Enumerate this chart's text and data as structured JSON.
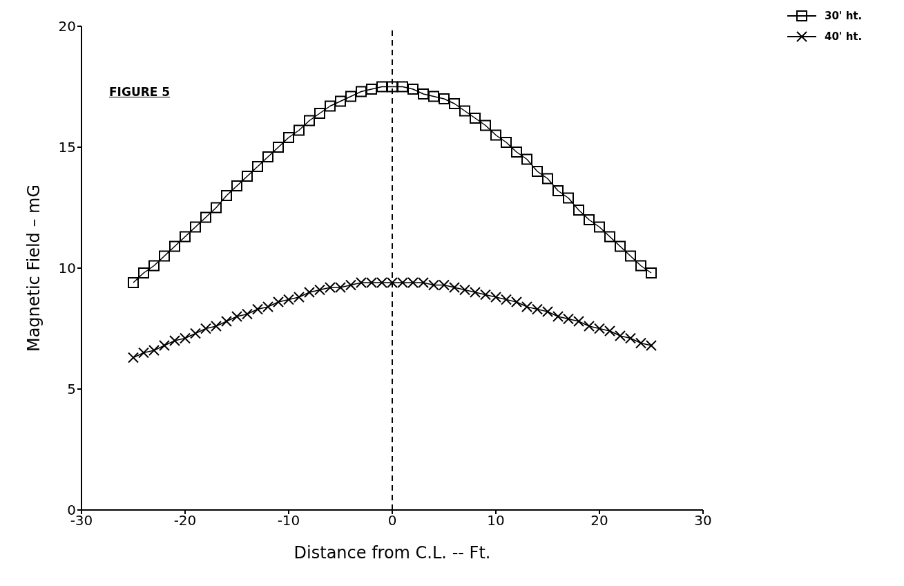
{
  "chart_data": {
    "type": "line",
    "xlabel": "Distance from C.L. -- Ft.",
    "ylabel": "Magnetic Field  –  mG",
    "annotations": [
      "FIGURE 5"
    ],
    "x": [
      -25,
      -24,
      -23,
      -22,
      -21,
      -20,
      -19,
      -18,
      -17,
      -16,
      -15,
      -14,
      -13,
      -12,
      -11,
      -10,
      -9,
      -8,
      -7,
      -6,
      -5,
      -4,
      -3,
      -2,
      -1,
      0,
      1,
      2,
      3,
      4,
      5,
      6,
      7,
      8,
      9,
      10,
      11,
      12,
      13,
      14,
      15,
      16,
      17,
      18,
      19,
      20,
      21,
      22,
      23,
      24,
      25
    ],
    "series": [
      {
        "name": "30' ht.",
        "color": "#000000",
        "marker": "square",
        "values": [
          9.4,
          9.8,
          10.1,
          10.5,
          10.9,
          11.3,
          11.7,
          12.1,
          12.5,
          13.0,
          13.4,
          13.8,
          14.2,
          14.6,
          15.0,
          15.4,
          15.7,
          16.1,
          16.4,
          16.7,
          16.9,
          17.1,
          17.3,
          17.4,
          17.5,
          17.5,
          17.5,
          17.4,
          17.2,
          17.1,
          17.0,
          16.8,
          16.5,
          16.2,
          15.9,
          15.5,
          15.2,
          14.8,
          14.5,
          14.0,
          13.7,
          13.2,
          12.9,
          12.4,
          12.0,
          11.7,
          11.3,
          10.9,
          10.5,
          10.1,
          9.8
        ]
      },
      {
        "name": "40' ht.",
        "color": "#000000",
        "marker": "cross",
        "values": [
          6.3,
          6.5,
          6.6,
          6.8,
          7.0,
          7.1,
          7.3,
          7.5,
          7.6,
          7.8,
          8.0,
          8.1,
          8.3,
          8.4,
          8.6,
          8.7,
          8.8,
          9.0,
          9.1,
          9.2,
          9.2,
          9.3,
          9.4,
          9.4,
          9.4,
          9.4,
          9.4,
          9.4,
          9.4,
          9.3,
          9.3,
          9.2,
          9.1,
          9.0,
          8.9,
          8.8,
          8.7,
          8.6,
          8.4,
          8.3,
          8.2,
          8.0,
          7.9,
          7.8,
          7.6,
          7.5,
          7.4,
          7.2,
          7.1,
          6.9,
          6.8
        ]
      }
    ],
    "xlim": [
      -30,
      30
    ],
    "xticks": [
      -30,
      -20,
      -10,
      0,
      10,
      20,
      30
    ],
    "ylim": [
      0,
      20
    ],
    "yticks": [
      0,
      5,
      10,
      15,
      20
    ],
    "ref_lines": [
      {
        "axis": "x",
        "value": 0,
        "line_style": "dashed",
        "color": "#000000"
      }
    ],
    "grid": false,
    "legend": "top right"
  }
}
